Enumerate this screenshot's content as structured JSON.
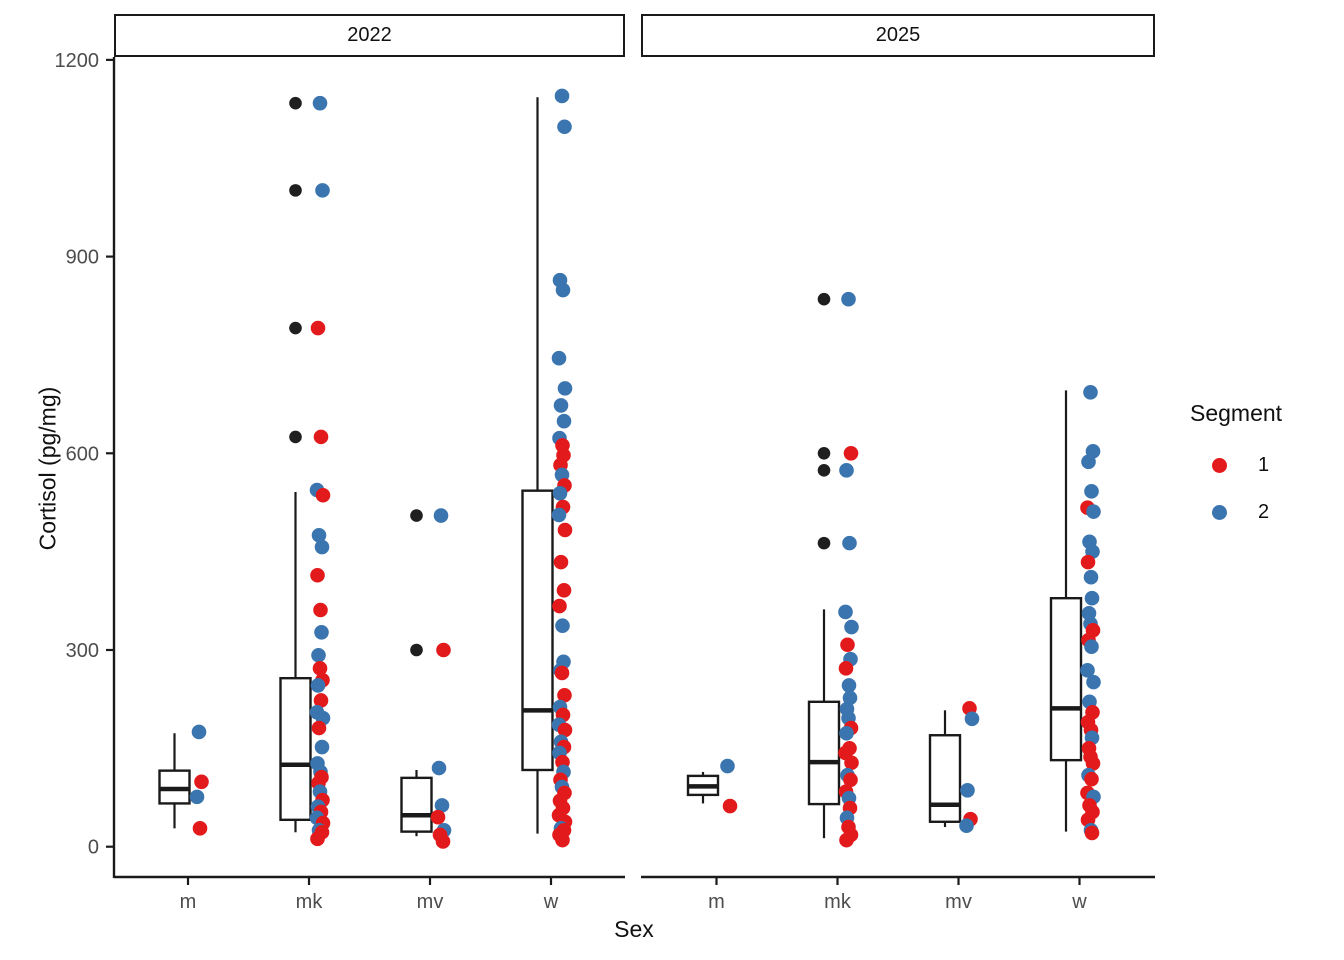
{
  "figure": {
    "y_axis": {
      "title": "Cortisol (pg/mg)",
      "ticks": [
        0,
        300,
        600,
        900,
        1200
      ]
    },
    "x_axis": {
      "title": "Sex",
      "categories": [
        "m",
        "mk",
        "mv",
        "w"
      ]
    },
    "legend": {
      "title": "Segment",
      "items": [
        {
          "label": "1",
          "color": "#e31a1c"
        },
        {
          "label": "2",
          "color": "#3b75af"
        }
      ]
    },
    "colors": {
      "segment1": "#e31a1c",
      "segment2": "#3b75af",
      "outlier": "#1f1f1f",
      "axis": "#1a1a1a",
      "tick_label": "#4d4d4d"
    }
  },
  "chart_data": {
    "type": "boxplot",
    "subtype": "faceted boxplot with jittered points colored by Segment (1=red, 2=blue); black dots are boxplot outliers",
    "ylim": [
      0,
      1200
    ],
    "facets": [
      {
        "label": "2022",
        "groups": [
          {
            "category": "m",
            "box": {
              "q1": 66,
              "median": 88,
              "q3": 116,
              "whisker_low": 28,
              "whisker_high": 173
            },
            "outliers": [],
            "points": [
              [
                175,
                2
              ],
              [
                99,
                1
              ],
              [
                76,
                2
              ],
              [
                28,
                1
              ]
            ]
          },
          {
            "category": "mk",
            "box": {
              "q1": 41,
              "median": 125,
              "q3": 257,
              "whisker_low": 22,
              "whisker_high": 541
            },
            "outliers": [
              1134,
              1001,
              791,
              625
            ],
            "points": [
              [
                1134,
                2
              ],
              [
                1001,
                2
              ],
              [
                791,
                1
              ],
              [
                625,
                1
              ],
              [
                544,
                2
              ],
              [
                536,
                1
              ],
              [
                475,
                2
              ],
              [
                457,
                2
              ],
              [
                414,
                1
              ],
              [
                361,
                1
              ],
              [
                327,
                2
              ],
              [
                292,
                2
              ],
              [
                272,
                1
              ],
              [
                254,
                1
              ],
              [
                246,
                2
              ],
              [
                223,
                1
              ],
              [
                205,
                2
              ],
              [
                196,
                2
              ],
              [
                181,
                1
              ],
              [
                152,
                2
              ],
              [
                127,
                2
              ],
              [
                114,
                2
              ],
              [
                106,
                1
              ],
              [
                97,
                1
              ],
              [
                84,
                2
              ],
              [
                71,
                1
              ],
              [
                61,
                2
              ],
              [
                53,
                1
              ],
              [
                44,
                2
              ],
              [
                36,
                1
              ],
              [
                25,
                2
              ],
              [
                22,
                1
              ],
              [
                12,
                1
              ]
            ]
          },
          {
            "category": "mv",
            "box": {
              "q1": 23,
              "median": 48,
              "q3": 105,
              "whisker_low": 16,
              "whisker_high": 117
            },
            "outliers": [
              505,
              300
            ],
            "points": [
              [
                505,
                2
              ],
              [
                300,
                1
              ],
              [
                120,
                2
              ],
              [
                63,
                2
              ],
              [
                45,
                1
              ],
              [
                25,
                2
              ],
              [
                18,
                1
              ],
              [
                8,
                1
              ]
            ]
          },
          {
            "category": "w",
            "box": {
              "q1": 117,
              "median": 208,
              "q3": 543,
              "whisker_low": 20,
              "whisker_high": 1143
            },
            "outliers": [],
            "points": [
              [
                1145,
                2
              ],
              [
                1098,
                2
              ],
              [
                864,
                2
              ],
              [
                849,
                2
              ],
              [
                745,
                2
              ],
              [
                699,
                2
              ],
              [
                673,
                2
              ],
              [
                649,
                2
              ],
              [
                623,
                2
              ],
              [
                612,
                1
              ],
              [
                597,
                1
              ],
              [
                582,
                1
              ],
              [
                567,
                2
              ],
              [
                551,
                1
              ],
              [
                539,
                2
              ],
              [
                518,
                1
              ],
              [
                506,
                2
              ],
              [
                483,
                1
              ],
              [
                434,
                1
              ],
              [
                391,
                1
              ],
              [
                367,
                1
              ],
              [
                337,
                2
              ],
              [
                282,
                2
              ],
              [
                269,
                2
              ],
              [
                265,
                1
              ],
              [
                231,
                1
              ],
              [
                213,
                2
              ],
              [
                201,
                1
              ],
              [
                186,
                2
              ],
              [
                178,
                1
              ],
              [
                160,
                2
              ],
              [
                152,
                1
              ],
              [
                143,
                2
              ],
              [
                129,
                1
              ],
              [
                114,
                2
              ],
              [
                102,
                1
              ],
              [
                91,
                2
              ],
              [
                82,
                1
              ],
              [
                70,
                1
              ],
              [
                59,
                1
              ],
              [
                48,
                1
              ],
              [
                38,
                1
              ],
              [
                28,
                2
              ],
              [
                25,
                1
              ],
              [
                18,
                1
              ],
              [
                10,
                1
              ]
            ]
          }
        ]
      },
      {
        "label": "2025",
        "groups": [
          {
            "category": "m",
            "box": {
              "q1": 79,
              "median": 92,
              "q3": 108,
              "whisker_low": 66,
              "whisker_high": 114
            },
            "outliers": [],
            "points": [
              [
                123,
                2
              ],
              [
                62,
                1
              ]
            ]
          },
          {
            "category": "mk",
            "box": {
              "q1": 65,
              "median": 129,
              "q3": 221,
              "whisker_low": 13,
              "whisker_high": 362
            },
            "outliers": [
              835,
              600,
              574,
              463
            ],
            "points": [
              [
                835,
                2
              ],
              [
                600,
                1
              ],
              [
                574,
                2
              ],
              [
                463,
                2
              ],
              [
                358,
                2
              ],
              [
                335,
                2
              ],
              [
                308,
                1
              ],
              [
                286,
                2
              ],
              [
                272,
                1
              ],
              [
                246,
                2
              ],
              [
                227,
                2
              ],
              [
                210,
                2
              ],
              [
                196,
                2
              ],
              [
                181,
                1
              ],
              [
                173,
                2
              ],
              [
                150,
                1
              ],
              [
                143,
                1
              ],
              [
                128,
                1
              ],
              [
                109,
                2
              ],
              [
                102,
                1
              ],
              [
                84,
                1
              ],
              [
                74,
                2
              ],
              [
                59,
                1
              ],
              [
                44,
                2
              ],
              [
                30,
                1
              ],
              [
                18,
                1
              ],
              [
                10,
                1
              ]
            ]
          },
          {
            "category": "mv",
            "box": {
              "q1": 38,
              "median": 64,
              "q3": 170,
              "whisker_low": 30,
              "whisker_high": 208
            },
            "outliers": [],
            "points": [
              [
                211,
                1
              ],
              [
                195,
                2
              ],
              [
                86,
                2
              ],
              [
                42,
                1
              ],
              [
                32,
                2
              ]
            ]
          },
          {
            "category": "w",
            "box": {
              "q1": 132,
              "median": 211,
              "q3": 379,
              "whisker_low": 23,
              "whisker_high": 696
            },
            "outliers": [],
            "points": [
              [
                693,
                2
              ],
              [
                603,
                2
              ],
              [
                587,
                2
              ],
              [
                542,
                2
              ],
              [
                517,
                1
              ],
              [
                511,
                2
              ],
              [
                465,
                2
              ],
              [
                450,
                2
              ],
              [
                434,
                1
              ],
              [
                411,
                2
              ],
              [
                379,
                2
              ],
              [
                356,
                2
              ],
              [
                340,
                2
              ],
              [
                330,
                1
              ],
              [
                315,
                1
              ],
              [
                305,
                2
              ],
              [
                269,
                2
              ],
              [
                251,
                2
              ],
              [
                221,
                2
              ],
              [
                205,
                1
              ],
              [
                190,
                1
              ],
              [
                178,
                1
              ],
              [
                166,
                2
              ],
              [
                150,
                1
              ],
              [
                137,
                1
              ],
              [
                127,
                1
              ],
              [
                109,
                2
              ],
              [
                103,
                1
              ],
              [
                82,
                1
              ],
              [
                76,
                2
              ],
              [
                63,
                1
              ],
              [
                53,
                1
              ],
              [
                41,
                1
              ],
              [
                25,
                2
              ],
              [
                21,
                1
              ]
            ]
          }
        ]
      }
    ]
  }
}
